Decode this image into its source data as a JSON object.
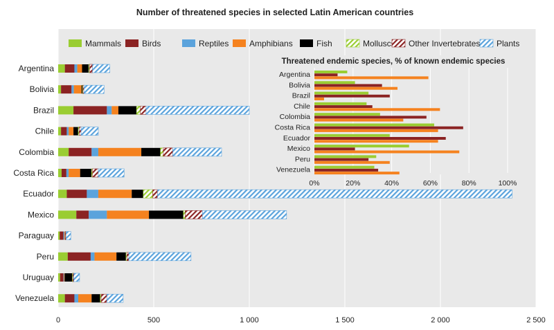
{
  "chart_data": [
    {
      "type": "bar",
      "orientation": "horizontal",
      "stacked": true,
      "title": "Number of threatened species in selected Latin American countries",
      "categories": [
        "Argentina",
        "Bolivia",
        "Brazil",
        "Chile",
        "Colombia",
        "Costa Rica",
        "Ecuador",
        "Mexico",
        "Paraguay",
        "Peru",
        "Uruguay",
        "Venezuela"
      ],
      "series": [
        {
          "name": "Mammals",
          "color": "#9acd32",
          "pattern": "solid",
          "values": [
            35,
            15,
            80,
            15,
            55,
            18,
            45,
            95,
            8,
            50,
            10,
            35
          ]
        },
        {
          "name": "Birds",
          "color": "#8b2323",
          "pattern": "solid",
          "values": [
            50,
            55,
            175,
            30,
            120,
            25,
            105,
            65,
            20,
            120,
            18,
            50
          ]
        },
        {
          "name": "Reptiles",
          "color": "#5ba3dc",
          "pattern": "solid",
          "values": [
            15,
            12,
            25,
            10,
            35,
            12,
            60,
            95,
            5,
            20,
            3,
            20
          ]
        },
        {
          "name": "Amphibians",
          "color": "#f5821f",
          "pattern": "solid",
          "values": [
            25,
            40,
            35,
            25,
            225,
            60,
            175,
            220,
            5,
            115,
            3,
            70
          ]
        },
        {
          "name": "Fish",
          "color": "#000000",
          "pattern": "solid",
          "values": [
            35,
            5,
            95,
            25,
            100,
            60,
            60,
            180,
            0,
            50,
            40,
            45
          ]
        },
        {
          "name": "Molluscs",
          "color": "#9acd32",
          "pattern": "hatch",
          "values": [
            5,
            3,
            20,
            5,
            15,
            5,
            50,
            10,
            0,
            5,
            3,
            5
          ]
        },
        {
          "name": "Other Invertebrates",
          "color": "#8b2323",
          "pattern": "hatch",
          "values": [
            15,
            5,
            30,
            10,
            50,
            30,
            25,
            90,
            3,
            10,
            5,
            30
          ]
        },
        {
          "name": "Plants",
          "color": "#5ba3dc",
          "pattern": "hatch",
          "values": [
            90,
            105,
            540,
            90,
            255,
            135,
            1855,
            440,
            25,
            325,
            30,
            85
          ]
        }
      ],
      "xlim": [
        0,
        2500
      ],
      "xticks": [
        0,
        500,
        1000,
        1500,
        2000,
        2500
      ],
      "xtick_labels": [
        "0",
        "500",
        "1 000",
        "1 500",
        "2 000",
        "2 500"
      ],
      "legend": "top",
      "grid": "vertical"
    },
    {
      "type": "bar",
      "orientation": "horizontal",
      "inset": true,
      "title": "Threatened endemic species, % of known endemic species",
      "categories": [
        "Argentina",
        "Bolivia",
        "Brazil",
        "Chile",
        "Colombia",
        "Costa Rica",
        "Ecuador",
        "Mexico",
        "Peru",
        "Venezuela"
      ],
      "series": [
        {
          "color": "#9acd32",
          "values": [
            17,
            21,
            28,
            27,
            34,
            62,
            39,
            49,
            32,
            31
          ]
        },
        {
          "color": "#8b2323",
          "values": [
            12,
            35,
            39,
            30,
            58,
            77,
            68,
            21,
            28,
            33
          ]
        },
        {
          "color": "#f5821f",
          "values": [
            59,
            43,
            5,
            65,
            46,
            64,
            64,
            75,
            39,
            44
          ]
        }
      ],
      "xlim": [
        0,
        100
      ],
      "xticks": [
        0,
        20,
        40,
        60,
        80,
        100
      ],
      "xtick_labels": [
        "0%",
        "20%",
        "40%",
        "60%",
        "80%",
        "100%"
      ],
      "grid": "vertical"
    }
  ]
}
